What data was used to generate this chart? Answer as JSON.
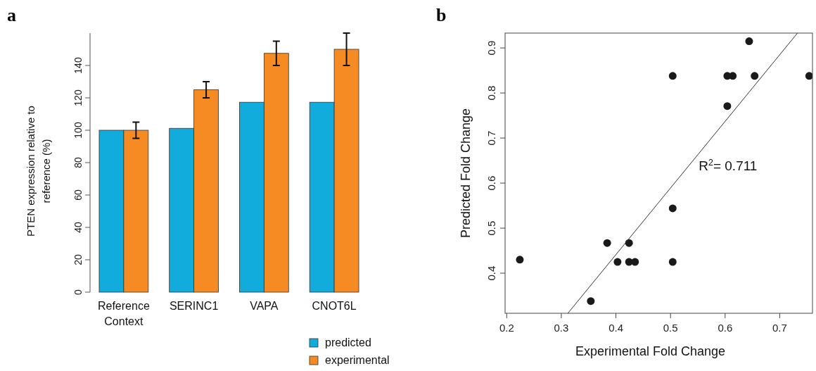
{
  "chart_data": [
    {
      "type": "bar",
      "title": "a",
      "ylabel": "PTEN expression relative to reference (%)",
      "categories": [
        "Reference Context",
        "SERINC1",
        "VAPA",
        "CNOT6L"
      ],
      "series": [
        {
          "name": "predicted",
          "color": "#12acdc",
          "values": [
            100,
            101.2,
            117.3,
            117.3
          ]
        },
        {
          "name": "experimental",
          "color": "#f58b22",
          "values": [
            100,
            125,
            147.5,
            150
          ],
          "errors": [
            5,
            5,
            7.5,
            10
          ]
        }
      ],
      "ylim": [
        0,
        160
      ],
      "yticks": [
        0,
        20,
        40,
        60,
        80,
        100,
        120,
        140
      ],
      "legend": "bottom right"
    },
    {
      "type": "scatter",
      "title": "b",
      "xlabel": "Experimental Fold Change",
      "ylabel": "Predicted Fold Change",
      "series": [
        {
          "type": "scatter",
          "marker": "circle",
          "color": "#1a1a1a",
          "x": [
            0.224,
            0.354,
            0.384,
            0.403,
            0.424,
            0.424,
            0.435,
            0.504,
            0.504,
            0.504,
            0.604,
            0.604,
            0.614,
            0.644,
            0.654,
            0.754
          ],
          "values": [
            0.43,
            0.338,
            0.467,
            0.425,
            0.467,
            0.425,
            0.425,
            0.838,
            0.544,
            0.425,
            0.838,
            0.771,
            0.838,
            0.915,
            0.838,
            0.838
          ]
        },
        {
          "type": "line",
          "color": "#333333",
          "line_style": "solid",
          "marker": "none",
          "x": [
            0.312,
            0.7325
          ],
          "values": [
            0.311,
            0.933
          ]
        }
      ],
      "xlim": [
        0.197,
        0.76
      ],
      "xticks": [
        0.2,
        0.3,
        0.4,
        0.5,
        0.6,
        0.7
      ],
      "ylim": [
        0.311,
        0.933
      ],
      "yticks": [
        0.4,
        0.5,
        0.6,
        0.7,
        0.8,
        0.9
      ],
      "annotations": [
        "R$^{2}$= 0.711"
      ]
    }
  ]
}
